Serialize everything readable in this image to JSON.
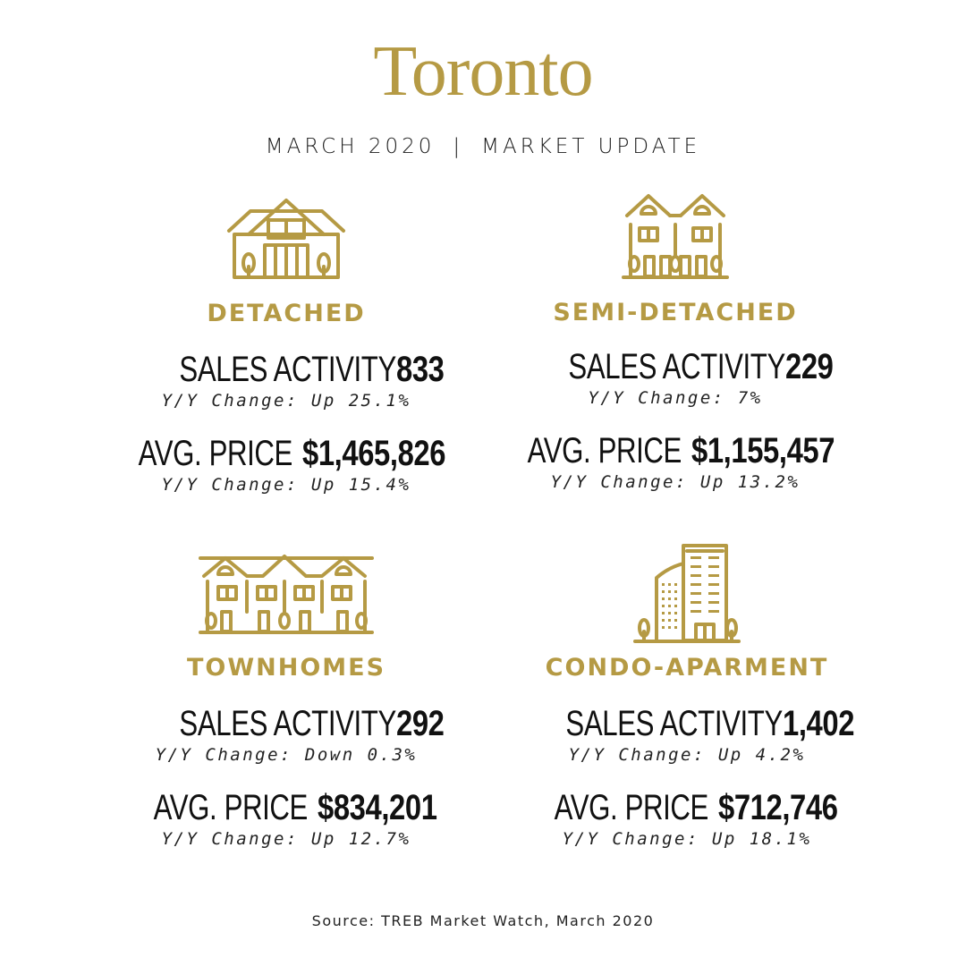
{
  "title": "Toronto",
  "subtitle": {
    "month": "MARCH 2020",
    "separator": "|",
    "label": "MARKET UPDATE"
  },
  "accent_color": "#b59a44",
  "cards": [
    {
      "icon": "detached-house-icon",
      "type": "DETACHED",
      "sales_label": "SALES ACTIVITY",
      "sales_value": "833",
      "sales_change": "Y/Y Change: Up 25.1%",
      "price_label": "AVG. PRICE",
      "price_value": "$1,465,826",
      "price_change": "Y/Y Change: Up 15.4%"
    },
    {
      "icon": "semi-detached-house-icon",
      "type": "SEMI-DETACHED",
      "sales_label": "SALES ACTIVITY",
      "sales_value": "229",
      "sales_change": "Y/Y Change: 7%",
      "price_label": "AVG. PRICE",
      "price_value": "$1,155,457",
      "price_change": "Y/Y Change: Up 13.2%"
    },
    {
      "icon": "townhomes-icon",
      "type": "TOWNHOMES",
      "sales_label": "SALES ACTIVITY",
      "sales_value": "292",
      "sales_change": "Y/Y Change: Down 0.3%",
      "price_label": "AVG. PRICE",
      "price_value": "$834,201",
      "price_change": "Y/Y Change: Up 12.7%"
    },
    {
      "icon": "condo-building-icon",
      "type": "CONDO-APARMENT",
      "sales_label": "SALES ACTIVITY",
      "sales_value": "1,402",
      "sales_change": "Y/Y Change: Up 4.2%",
      "price_label": "AVG. PRICE",
      "price_value": "$712,746",
      "price_change": "Y/Y Change: Up 18.1%"
    }
  ],
  "source": "Source: TREB Market Watch, March 2020"
}
